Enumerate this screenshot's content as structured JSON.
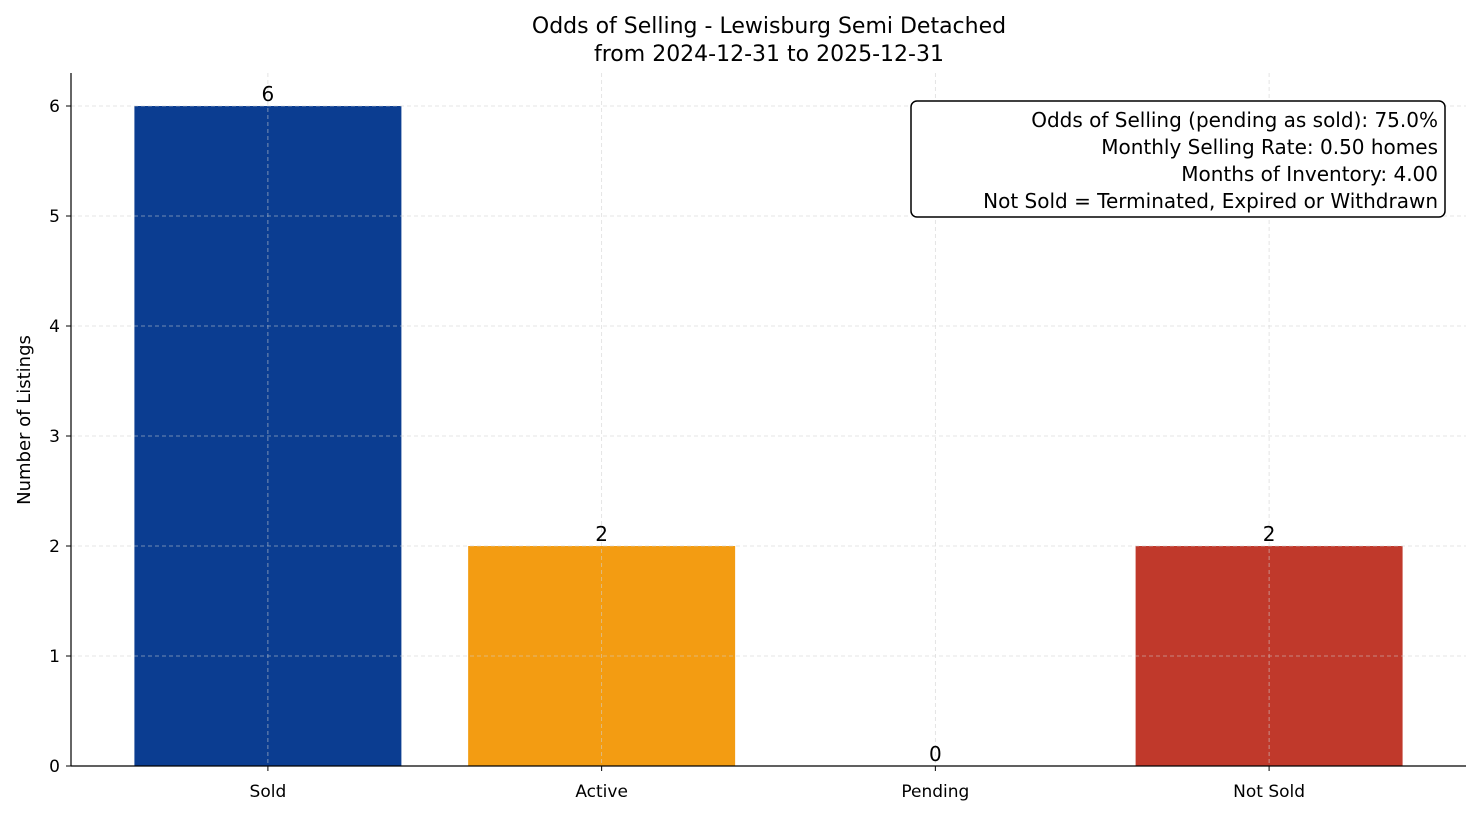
{
  "chart_data": {
    "type": "bar",
    "title": "Odds of Selling - Lewisburg Semi Detached",
    "subtitle": "from 2024-12-31 to 2025-12-31",
    "xlabel": "",
    "ylabel": "Number of Listings",
    "categories": [
      "Sold",
      "Active",
      "Pending",
      "Not Sold"
    ],
    "values": [
      6,
      2,
      0,
      2
    ],
    "data_labels": [
      "6",
      "2",
      "0",
      "2"
    ],
    "colors": [
      "#0b3d91",
      "#f39c12",
      "#1f77b4",
      "#c0392b"
    ],
    "ylim": [
      0,
      6.3
    ],
    "yticks": [
      0,
      1,
      2,
      3,
      4,
      5,
      6
    ],
    "grid": true,
    "annotation": [
      "Odds of Selling (pending as sold): 75.0%",
      "Monthly Selling Rate: 0.50 homes",
      "Months of Inventory: 4.00",
      "Not Sold = Terminated, Expired or Withdrawn"
    ],
    "annotation_placement": "top-right"
  }
}
